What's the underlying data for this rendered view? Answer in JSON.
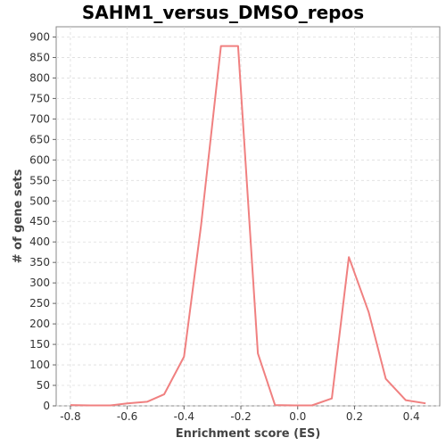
{
  "chart_data": {
    "type": "line",
    "title": "SAHM1_versus_DMSO_repos",
    "xlabel": "Enrichment score (ES)",
    "ylabel": "# of gene sets",
    "xlim": [
      -0.85,
      0.5
    ],
    "ylim": [
      0,
      925
    ],
    "x_ticks": [
      -0.8,
      -0.6,
      -0.4,
      -0.2,
      0.0,
      0.2,
      0.4
    ],
    "x_tick_labels": [
      "-0.8",
      "-0.6",
      "-0.4",
      "-0.2",
      "0.0",
      "0.2",
      "0.4"
    ],
    "y_ticks": [
      0,
      50,
      100,
      150,
      200,
      250,
      300,
      350,
      400,
      450,
      500,
      550,
      600,
      650,
      700,
      750,
      800,
      850,
      900
    ],
    "y_tick_labels": [
      "0",
      "50",
      "100",
      "150",
      "200",
      "250",
      "300",
      "350",
      "400",
      "450",
      "500",
      "550",
      "600",
      "650",
      "700",
      "750",
      "800",
      "850",
      "900"
    ],
    "grid": true,
    "series_color": "#f08080",
    "series": [
      {
        "x": [
          -0.8,
          -0.73,
          -0.66,
          -0.6,
          -0.53,
          -0.47,
          -0.4,
          -0.34,
          -0.27,
          -0.21,
          -0.14,
          -0.08,
          -0.01,
          0.05,
          0.12,
          0.18,
          0.25,
          0.31,
          0.38,
          0.45
        ],
        "y": [
          2,
          1,
          1,
          6,
          10,
          28,
          120,
          440,
          878,
          878,
          128,
          2,
          1,
          1,
          18,
          363,
          228,
          66,
          14,
          6
        ]
      }
    ]
  }
}
